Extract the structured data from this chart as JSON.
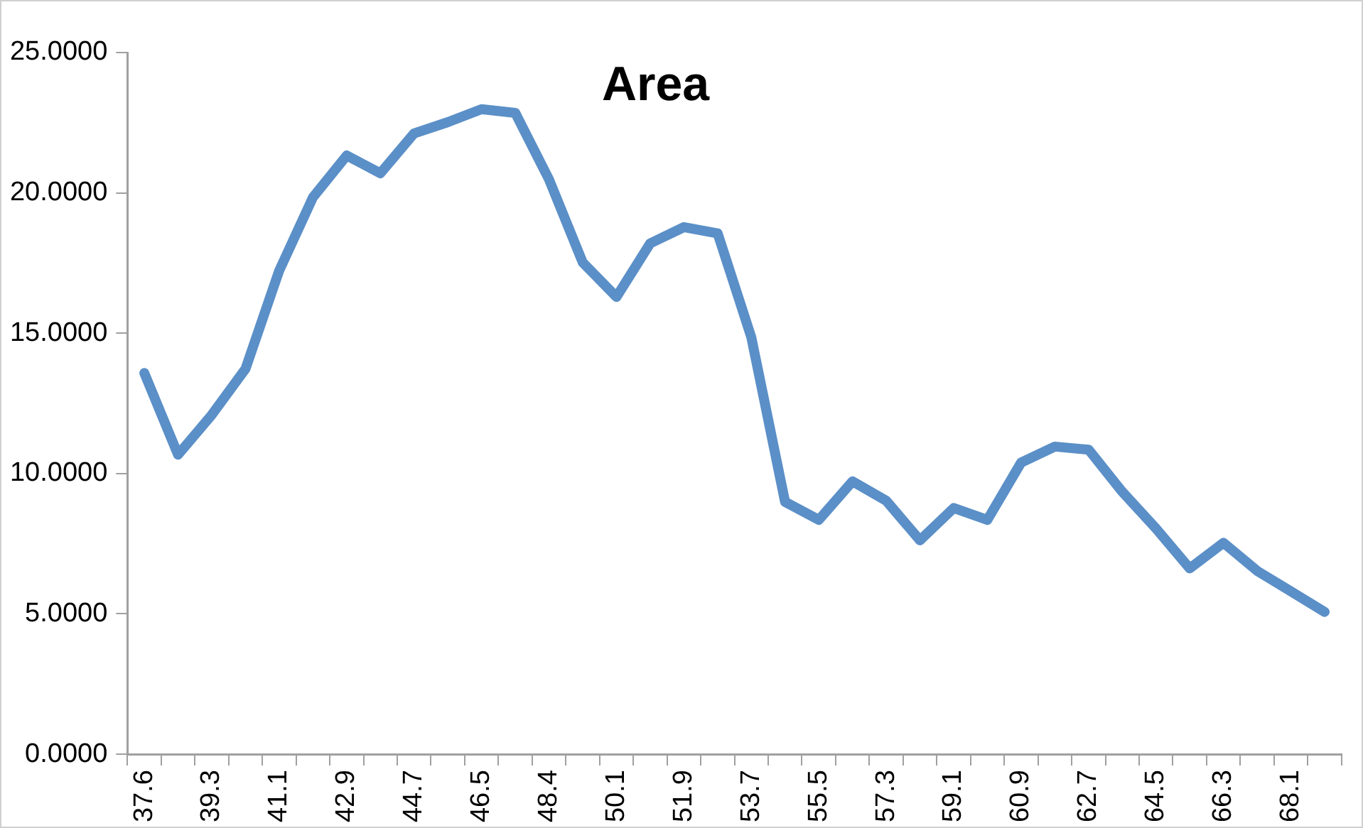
{
  "chart_data": {
    "type": "line",
    "title": "Area",
    "categories": [
      "37.6",
      null,
      "39.3",
      null,
      "41.1",
      null,
      "42.9",
      null,
      "44.7",
      null,
      "46.5",
      null,
      "48.4",
      null,
      "50.1",
      null,
      "51.9",
      null,
      "53.7",
      null,
      "55.5",
      null,
      "57.3",
      null,
      "59.1",
      null,
      "60.9",
      null,
      "62.7",
      null,
      "64.5",
      null,
      "66.3",
      null,
      "68.1",
      null
    ],
    "series": [
      {
        "color": "#5b8fc7",
        "values": [
          13.58,
          10.67,
          12.09,
          13.73,
          17.23,
          19.84,
          21.33,
          20.7,
          22.12,
          22.52,
          22.98,
          22.85,
          20.48,
          17.52,
          16.29,
          18.2,
          18.78,
          18.56,
          14.85,
          8.99,
          8.35,
          9.72,
          9.03,
          7.62,
          8.77,
          8.35,
          10.39,
          10.96,
          10.85,
          9.35,
          8.04,
          6.62,
          7.53,
          6.53,
          5.8,
          5.07
        ]
      }
    ],
    "ylim": [
      0,
      25
    ],
    "yticks": [
      {
        "value": 0,
        "label": "0.0000"
      },
      {
        "value": 5,
        "label": "5.0000"
      },
      {
        "value": 10,
        "label": "10.0000"
      },
      {
        "value": 15,
        "label": "15.0000"
      },
      {
        "value": 20,
        "label": "20.0000"
      },
      {
        "value": 25,
        "label": "25.0000"
      }
    ],
    "grid": false,
    "legend": false,
    "marker": "none",
    "line_style": "solid"
  }
}
